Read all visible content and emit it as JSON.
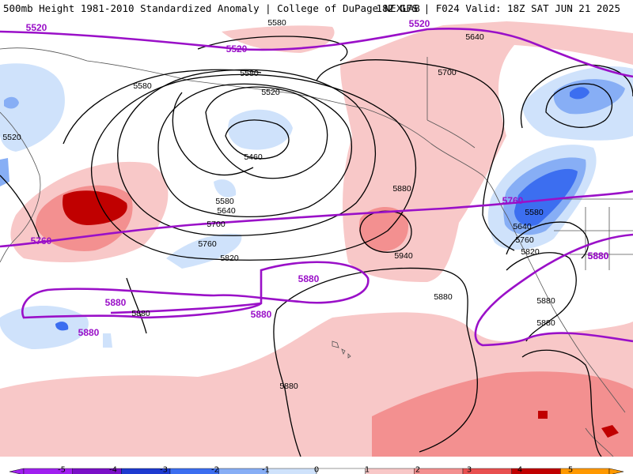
{
  "header": {
    "left": "500mb Height 1981-2010 Standardized Anomaly | College of DuPage NEXLAB",
    "right": "18Z GFS | F024 Valid: 18Z SAT JUN 21 2025"
  },
  "contour_labels": {
    "purple": [
      "5520",
      "5520",
      "5520",
      "5760",
      "5760",
      "5880",
      "5880",
      "5880",
      "5880",
      "5880",
      "5880"
    ],
    "black": [
      "5580",
      "5580",
      "5580",
      "5520",
      "5460",
      "5580",
      "5640",
      "5700",
      "5760",
      "5820",
      "5880",
      "5940",
      "5640",
      "5700",
      "5580",
      "5640",
      "5760",
      "5820",
      "5880",
      "5880",
      "5880",
      "5880",
      "5880",
      "5520"
    ]
  },
  "colorbar": {
    "ticks": [
      "-5",
      "-4",
      "-3",
      "-2",
      "-1",
      "0",
      "1",
      "2",
      "3",
      "4",
      "5"
    ],
    "colors": [
      "#a020f0",
      "#7a10c8",
      "#1e3ad0",
      "#3c6ef0",
      "#87aef5",
      "#cfe2fb",
      "#ffffff",
      "#f8c8c8",
      "#f39090",
      "#e85050",
      "#c00000",
      "#ff9900"
    ]
  }
}
